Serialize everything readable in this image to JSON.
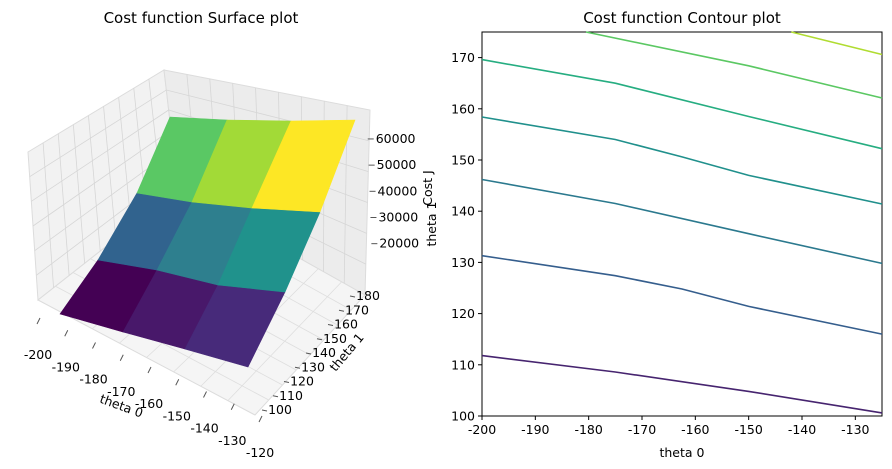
{
  "chart_data": [
    {
      "type": "surface3d",
      "title": "Cost function Surface plot",
      "xlabel": "theta 0",
      "ylabel": "theta 1",
      "zlabel": "Cost J",
      "x_ticks": [
        "-200",
        "-190",
        "-180",
        "-170",
        "-160",
        "-150",
        "-140",
        "-130",
        "-120"
      ],
      "y_ticks": [
        "100",
        "110",
        "120",
        "130",
        "140",
        "150",
        "160",
        "170",
        "180"
      ],
      "z_ticks": [
        "20000",
        "30000",
        "40000",
        "50000",
        "60000"
      ],
      "xlim": [
        -200,
        -120
      ],
      "ylim": [
        100,
        180
      ],
      "zlim": [
        13000,
        68000
      ],
      "colormap": "viridis",
      "grid": true
    },
    {
      "type": "contour",
      "title": "Cost function Contour plot",
      "xlabel": "theta 0",
      "ylabel": "theta 1",
      "x_ticks": [
        "-200",
        "-190",
        "-180",
        "-170",
        "-160",
        "-150",
        "-140",
        "-130"
      ],
      "y_ticks": [
        "100",
        "110",
        "120",
        "130",
        "140",
        "150",
        "160",
        "170"
      ],
      "xlim": [
        -200,
        -125
      ],
      "ylim": [
        100,
        175
      ],
      "contour_lines": [
        {
          "color": "#46246f",
          "points": [
            [
              -200,
              111.8
            ],
            [
              -175,
              108.6
            ],
            [
              -150,
              104.8
            ],
            [
              -125,
              100.6
            ]
          ]
        },
        {
          "color": "#355e8d",
          "points": [
            [
              -200,
              131.3
            ],
            [
              -175,
              127.4
            ],
            [
              -162.5,
              124.8
            ],
            [
              -150,
              121.4
            ],
            [
              -125,
              116.0
            ]
          ]
        },
        {
          "color": "#2b798e",
          "points": [
            [
              -200,
              146.2
            ],
            [
              -175,
              141.5
            ],
            [
              -150,
              135.6
            ],
            [
              -125,
              129.8
            ]
          ]
        },
        {
          "color": "#20908c",
          "points": [
            [
              -200,
              158.4
            ],
            [
              -175,
              154.0
            ],
            [
              -162.5,
              150.6
            ],
            [
              -150,
              147.0
            ],
            [
              -125,
              141.4
            ]
          ]
        },
        {
          "color": "#26ad81",
          "points": [
            [
              -200,
              169.6
            ],
            [
              -175,
              165.0
            ],
            [
              -150,
              158.5
            ],
            [
              -125,
              152.2
            ]
          ]
        },
        {
          "color": "#5bc863",
          "points": [
            [
              -180.5,
              175.0
            ],
            [
              -150,
              168.4
            ],
            [
              -125,
              162.1
            ]
          ]
        },
        {
          "color": "#b0dc31",
          "points": [
            [
              -142,
              175.0
            ],
            [
              -125,
              170.6
            ]
          ]
        }
      ]
    }
  ]
}
